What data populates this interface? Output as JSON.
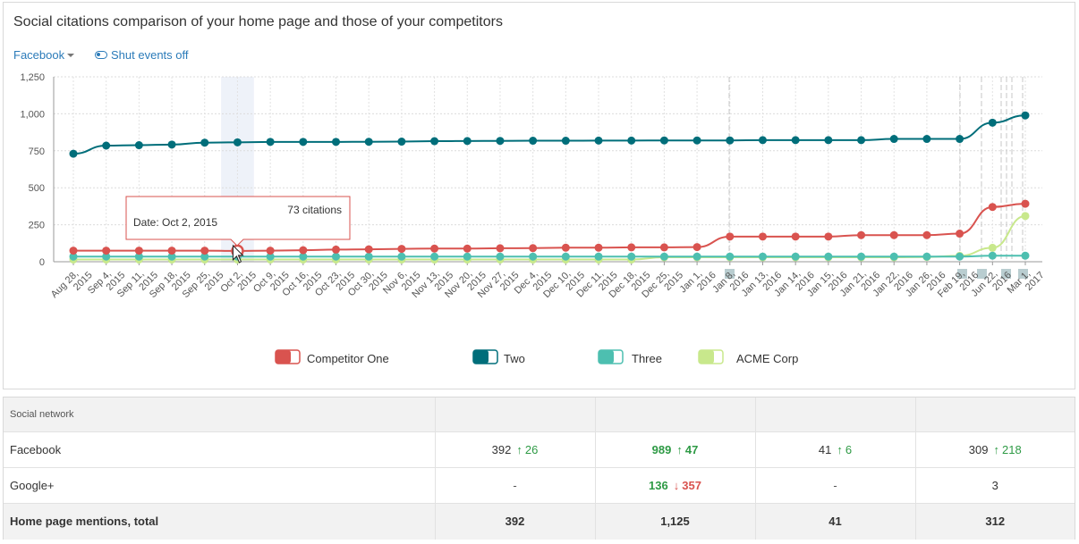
{
  "header": {
    "title": "Social citations comparison of your home page and those of your competitors",
    "network_select": "Facebook",
    "events_toggle": "Shut events off"
  },
  "tooltip": {
    "value": "73 citations",
    "date": "Date: Oct 2, 2015"
  },
  "colors": {
    "competitor_one": "#d9534f",
    "two": "#006e7a",
    "three": "#4dbfb0",
    "acme": "#c8e88c"
  },
  "chart_data": {
    "type": "line",
    "ylim": [
      0,
      1250
    ],
    "yticks": [
      "0",
      "250",
      "500",
      "750",
      "1,000",
      "1,250"
    ],
    "yticks_values": [
      0,
      250,
      500,
      750,
      1000,
      1250
    ],
    "x": [
      [
        "Aug 28,",
        "2015"
      ],
      [
        "Sep 4,",
        "2015"
      ],
      [
        "Sep 11,",
        "2015"
      ],
      [
        "Sep 18,",
        "2015"
      ],
      [
        "Sep 25,",
        "2015"
      ],
      [
        "Oct 2,",
        "2015"
      ],
      [
        "Oct 9,",
        "2015"
      ],
      [
        "Oct 16,",
        "2015"
      ],
      [
        "Oct 23,",
        "2015"
      ],
      [
        "Oct 30,",
        "2015"
      ],
      [
        "Nov 6,",
        "2015"
      ],
      [
        "Nov 13,",
        "2015"
      ],
      [
        "Nov 20,",
        "2015"
      ],
      [
        "Nov 27,",
        "2015"
      ],
      [
        "Dec 4,",
        "2015"
      ],
      [
        "Dec 10,",
        "2015"
      ],
      [
        "Dec 11,",
        "2015"
      ],
      [
        "Dec 18,",
        "2015"
      ],
      [
        "Dec 25,",
        "2015"
      ],
      [
        "Jan 1,",
        "2016"
      ],
      [
        "Jan 8,",
        "2016"
      ],
      [
        "Jan 13,",
        "2016"
      ],
      [
        "Jan 14,",
        "2016"
      ],
      [
        "Jan 15,",
        "2016"
      ],
      [
        "Jan 21,",
        "2016"
      ],
      [
        "Jan 22,",
        "2016"
      ],
      [
        "Jan 26,",
        "2016"
      ],
      [
        "Feb 19,",
        "2016"
      ],
      [
        "Jun 22,",
        "2016"
      ],
      [
        "Mar 1,",
        "2017"
      ]
    ],
    "highlight_index": 5,
    "series": [
      {
        "name": "Competitor One",
        "key": "competitor_one",
        "values": [
          75,
          75,
          75,
          75,
          75,
          73,
          75,
          78,
          82,
          84,
          87,
          89,
          89,
          91,
          92,
          95,
          95,
          97,
          97,
          99,
          170,
          170,
          170,
          170,
          180,
          180,
          180,
          190,
          370,
          392
        ]
      },
      {
        "name": "Two",
        "key": "two",
        "values": [
          730,
          785,
          788,
          792,
          805,
          807,
          810,
          810,
          810,
          811,
          812,
          815,
          816,
          817,
          818,
          818,
          819,
          819,
          820,
          820,
          820,
          822,
          822,
          822,
          822,
          830,
          830,
          830,
          940,
          989
        ]
      },
      {
        "name": "Three",
        "key": "three",
        "values": [
          35,
          35,
          35,
          35,
          35,
          35,
          35,
          35,
          35,
          35,
          35,
          35,
          35,
          35,
          35,
          35,
          35,
          35,
          35,
          35,
          35,
          35,
          35,
          35,
          35,
          35,
          35,
          35,
          41,
          41
        ]
      },
      {
        "name": "ACME Corp",
        "key": "acme",
        "values": [
          15,
          15,
          15,
          15,
          15,
          15,
          15,
          15,
          15,
          15,
          15,
          15,
          15,
          15,
          15,
          15,
          15,
          15,
          30,
          30,
          30,
          30,
          30,
          30,
          30,
          30,
          32,
          40,
          94,
          309
        ]
      }
    ]
  },
  "table": {
    "header_label": "Social network",
    "rows": [
      {
        "label": "Facebook",
        "cells": [
          {
            "value": "392",
            "delta": "26",
            "dir": "up",
            "bold": false
          },
          {
            "value": "989",
            "delta": "47",
            "dir": "up",
            "bold": true
          },
          {
            "value": "41",
            "delta": "6",
            "dir": "up",
            "bold": false
          },
          {
            "value": "309",
            "delta": "218",
            "dir": "up",
            "bold": false
          }
        ]
      },
      {
        "label": "Google+",
        "cells": [
          {
            "value": "-",
            "delta": "",
            "dir": "",
            "bold": false
          },
          {
            "value": "136",
            "delta": "357",
            "dir": "down",
            "bold": true
          },
          {
            "value": "-",
            "delta": "",
            "dir": "",
            "bold": false
          },
          {
            "value": "3",
            "delta": "",
            "dir": "",
            "bold": false
          }
        ]
      }
    ],
    "total": {
      "label": "Home page mentions, total",
      "values": [
        "392",
        "1,125",
        "41",
        "312"
      ]
    }
  }
}
